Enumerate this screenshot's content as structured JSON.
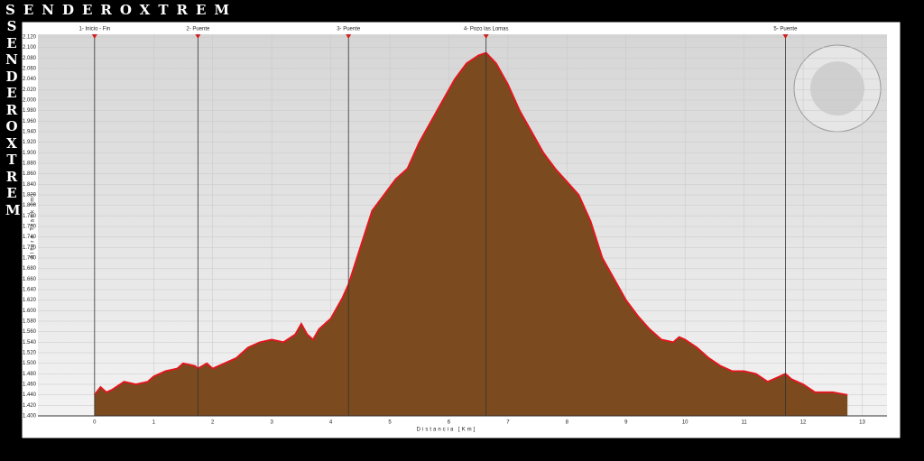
{
  "chart_data": {
    "type": "area",
    "brand": "SENDEROXTREM",
    "xlabel": "Distancia [Km]",
    "ylabel": "Altura Track [m]",
    "color": "#7b4a1e",
    "line_color": "#e8141e",
    "x": [
      0,
      0.1,
      0.2,
      0.3,
      0.5,
      0.7,
      0.9,
      1.0,
      1.2,
      1.4,
      1.5,
      1.7,
      1.75,
      1.9,
      2.0,
      2.2,
      2.4,
      2.6,
      2.8,
      3.0,
      3.2,
      3.4,
      3.5,
      3.6,
      3.7,
      3.8,
      4.0,
      4.2,
      4.3,
      4.5,
      4.7,
      4.9,
      5.1,
      5.3,
      5.5,
      5.7,
      5.9,
      6.1,
      6.3,
      6.5,
      6.63,
      6.8,
      7.0,
      7.2,
      7.4,
      7.6,
      7.8,
      8.0,
      8.2,
      8.4,
      8.6,
      8.8,
      9.0,
      9.2,
      9.4,
      9.6,
      9.8,
      9.9,
      10.0,
      10.2,
      10.4,
      10.6,
      10.8,
      11.0,
      11.2,
      11.4,
      11.6,
      11.7,
      11.8,
      12.0,
      12.2,
      12.5,
      12.75
    ],
    "values": [
      1440,
      1455,
      1445,
      1450,
      1465,
      1460,
      1465,
      1475,
      1485,
      1490,
      1500,
      1495,
      1490,
      1500,
      1490,
      1500,
      1510,
      1530,
      1540,
      1545,
      1540,
      1555,
      1575,
      1555,
      1545,
      1565,
      1585,
      1625,
      1650,
      1720,
      1790,
      1820,
      1850,
      1870,
      1920,
      1960,
      2000,
      2040,
      2070,
      2085,
      2090,
      2070,
      2030,
      1980,
      1940,
      1900,
      1870,
      1845,
      1820,
      1770,
      1700,
      1660,
      1620,
      1590,
      1565,
      1545,
      1540,
      1550,
      1545,
      1530,
      1510,
      1495,
      1485,
      1485,
      1480,
      1465,
      1475,
      1480,
      1470,
      1460,
      1445,
      1445,
      1440
    ],
    "waypoints": [
      {
        "label": "1- Inicio - Fin",
        "x": 0
      },
      {
        "label": "2- Puente",
        "x": 1.75
      },
      {
        "label": "3- Puente",
        "x": 4.3
      },
      {
        "label": "4- Pozo las Lomas",
        "x": 6.63
      },
      {
        "label": "5- Puente",
        "x": 11.7
      }
    ],
    "xlim": [
      -0.96,
      13.42
    ],
    "xticks": [
      0,
      1,
      2,
      3,
      4,
      5,
      6,
      7,
      8,
      9,
      10,
      11,
      12,
      13
    ],
    "ylim": [
      1400,
      2120
    ],
    "yticks": [
      {
        "value": 1400,
        "label": "1.400"
      },
      {
        "value": 1420,
        "label": "1.420"
      },
      {
        "value": 1440,
        "label": "1.440"
      },
      {
        "value": 1460,
        "label": "1.460"
      },
      {
        "value": 1480,
        "label": "1.480"
      },
      {
        "value": 1500,
        "label": "1.500"
      },
      {
        "value": 1520,
        "label": "1.520"
      },
      {
        "value": 1540,
        "label": "1.540"
      },
      {
        "value": 1560,
        "label": "1.560"
      },
      {
        "value": 1580,
        "label": "1.580"
      },
      {
        "value": 1600,
        "label": "1.600"
      },
      {
        "value": 1620,
        "label": "1.620"
      },
      {
        "value": 1640,
        "label": "1.640"
      },
      {
        "value": 1660,
        "label": "1.660"
      },
      {
        "value": 1680,
        "label": "1.680"
      },
      {
        "value": 1700,
        "label": "1.700"
      },
      {
        "value": 1720,
        "label": "1.720"
      },
      {
        "value": 1740,
        "label": "1.740"
      },
      {
        "value": 1760,
        "label": "1.760"
      },
      {
        "value": 1780,
        "label": "1.780"
      },
      {
        "value": 1800,
        "label": "1.800"
      },
      {
        "value": 1820,
        "label": "1.820"
      },
      {
        "value": 1840,
        "label": "1.840"
      },
      {
        "value": 1860,
        "label": "1.860"
      },
      {
        "value": 1880,
        "label": "1.880"
      },
      {
        "value": 1900,
        "label": "1.900"
      },
      {
        "value": 1920,
        "label": "1.920"
      },
      {
        "value": 1940,
        "label": "1.940"
      },
      {
        "value": 1960,
        "label": "1.960"
      },
      {
        "value": 1980,
        "label": "1.980"
      },
      {
        "value": 2000,
        "label": "2.000"
      },
      {
        "value": 2020,
        "label": "2.020"
      },
      {
        "value": 2040,
        "label": "2.040"
      },
      {
        "value": 2060,
        "label": "2.060"
      },
      {
        "value": 2080,
        "label": "2.080"
      },
      {
        "value": 2100,
        "label": "2.100"
      },
      {
        "value": 2120,
        "label": "2.120"
      }
    ],
    "grid": true
  }
}
